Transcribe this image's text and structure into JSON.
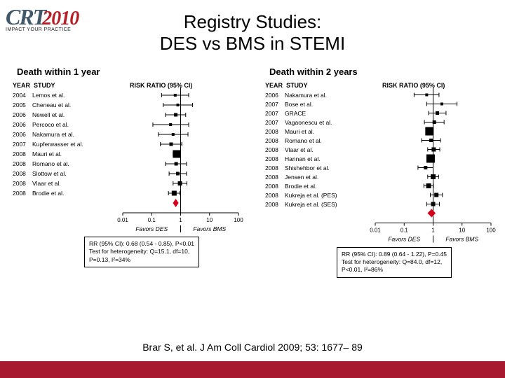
{
  "logo": {
    "crt": "CRT",
    "year": "2010",
    "tagline": "IMPACT YOUR PRACTICE"
  },
  "title_line1": "Registry Studies:",
  "title_line2": "DES vs BMS in STEMI",
  "citation": "Brar S, et al. J Am Coll Cardiol 2009; 53: 1677– 89",
  "footer_color": "#a6192e",
  "colors": {
    "axis": "#000000",
    "marker": "#000000",
    "diamond": "#d4001a",
    "text": "#000000"
  },
  "left_chart": {
    "title": "Death within 1 year",
    "year_header": "YEAR",
    "study_header": "STUDY",
    "rr_header": "RISK RATIO (95% CI)",
    "studies": [
      {
        "year": "2004",
        "name": "Lemos et al.",
        "rr": 0.65,
        "lo": 0.22,
        "hi": 1.9,
        "size": 4
      },
      {
        "year": "2005",
        "name": "Cheneau et al.",
        "rr": 0.8,
        "lo": 0.25,
        "hi": 2.6,
        "size": 4
      },
      {
        "year": "2006",
        "name": "Newell et al.",
        "rr": 0.68,
        "lo": 0.3,
        "hi": 1.5,
        "size": 5
      },
      {
        "year": "2006",
        "name": "Percoco et al.",
        "rr": 0.45,
        "lo": 0.11,
        "hi": 1.9,
        "size": 4
      },
      {
        "year": "2006",
        "name": "Nakamura et al.",
        "rr": 0.55,
        "lo": 0.17,
        "hi": 1.8,
        "size": 4
      },
      {
        "year": "2007",
        "name": "Kupferwasser et al.",
        "rr": 0.47,
        "lo": 0.2,
        "hi": 1.1,
        "size": 5
      },
      {
        "year": "2008",
        "name": "Mauri et al.",
        "rr": 0.73,
        "lo": 0.55,
        "hi": 0.97,
        "size": 11
      },
      {
        "year": "2008",
        "name": "Romano et al.",
        "rr": 0.7,
        "lo": 0.3,
        "hi": 1.6,
        "size": 5
      },
      {
        "year": "2008",
        "name": "Slottow et al.",
        "rr": 0.8,
        "lo": 0.4,
        "hi": 1.6,
        "size": 5
      },
      {
        "year": "2008",
        "name": "Vlaar et al.",
        "rr": 0.95,
        "lo": 0.55,
        "hi": 1.65,
        "size": 6
      },
      {
        "year": "2008",
        "name": "Brodie et al.",
        "rr": 0.6,
        "lo": 0.38,
        "hi": 0.95,
        "size": 7
      }
    ],
    "pooled": {
      "rr": 0.68,
      "lo": 0.54,
      "hi": 0.85
    },
    "axis": {
      "ticks": [
        0.01,
        0.1,
        1,
        10,
        100
      ],
      "favors_left": "Favors DES",
      "favors_right": "Favors BMS"
    },
    "statbox": [
      "RR (95% CI): 0.68 (0.54 - 0.85), P<0.01",
      "Test for heterogeneity: Q=15.1, df=10,",
      "P=0.13, I²=34%"
    ]
  },
  "right_chart": {
    "title": "Death within 2 years",
    "year_header": "YEAR",
    "study_header": "STUDY",
    "rr_header": "RISK RATIO (95% CI)",
    "studies": [
      {
        "year": "2006",
        "name": "Nakamura et al.",
        "rr": 0.6,
        "lo": 0.22,
        "hi": 1.6,
        "size": 4
      },
      {
        "year": "2007",
        "name": "Bose et al.",
        "rr": 2.0,
        "lo": 0.6,
        "hi": 6.7,
        "size": 4
      },
      {
        "year": "2007",
        "name": "GRACE",
        "rr": 1.4,
        "lo": 0.7,
        "hi": 2.8,
        "size": 5
      },
      {
        "year": "2007",
        "name": "Vagaonescu et al.",
        "rr": 1.1,
        "lo": 0.5,
        "hi": 2.4,
        "size": 5
      },
      {
        "year": "2008",
        "name": "Mauri et al.",
        "rr": 0.75,
        "lo": 0.6,
        "hi": 0.94,
        "size": 12
      },
      {
        "year": "2008",
        "name": "Romano et al.",
        "rr": 0.85,
        "lo": 0.4,
        "hi": 1.8,
        "size": 5
      },
      {
        "year": "2008",
        "name": "Vlaar et al.",
        "rr": 1.05,
        "lo": 0.65,
        "hi": 1.7,
        "size": 6
      },
      {
        "year": "2008",
        "name": "Hannan et al.",
        "rr": 0.82,
        "lo": 0.66,
        "hi": 1.02,
        "size": 12
      },
      {
        "year": "2008",
        "name": "Shishehbor et al.",
        "rr": 0.55,
        "lo": 0.3,
        "hi": 1.0,
        "size": 5
      },
      {
        "year": "2008",
        "name": "Jensen et al.",
        "rr": 1.0,
        "lo": 0.65,
        "hi": 1.55,
        "size": 7
      },
      {
        "year": "2008",
        "name": "Brodie et al.",
        "rr": 0.7,
        "lo": 0.48,
        "hi": 1.02,
        "size": 7
      },
      {
        "year": "2008",
        "name": "Kukreja et al. (PES)",
        "rr": 1.3,
        "lo": 0.8,
        "hi": 2.1,
        "size": 6
      },
      {
        "year": "2008",
        "name": "Kukreja et al. (SES)",
        "rr": 1.0,
        "lo": 0.6,
        "hi": 1.65,
        "size": 6
      }
    ],
    "pooled": {
      "rr": 0.89,
      "lo": 0.64,
      "hi": 1.22
    },
    "axis": {
      "ticks": [
        0.01,
        0.1,
        1,
        10,
        100
      ],
      "favors_left": "Favors DES",
      "favors_right": "Favors BMS"
    },
    "statbox": [
      "RR (95% CI):  0.89 (0.64 - 1.22), P=0.45",
      "Test for heterogeneity: Q=84.0, df=12,",
      "P<0.01, I²=86%"
    ]
  }
}
